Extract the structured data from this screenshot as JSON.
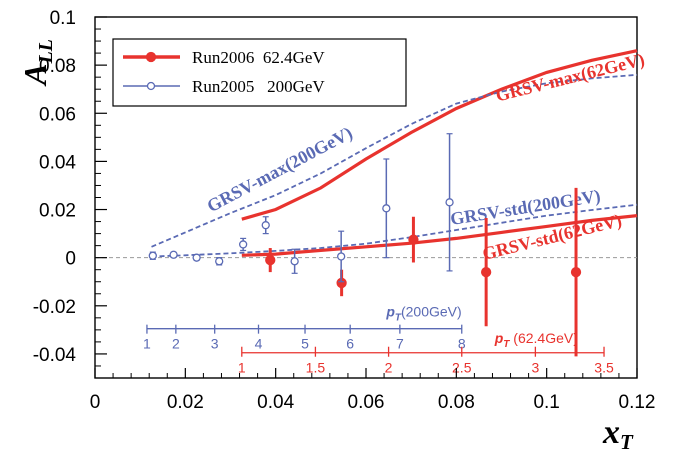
{
  "chart_data": {
    "type": "scatter",
    "xlabel": "x",
    "xlabel_sub": "T",
    "ylabel": "A",
    "ylabel_sub": "LL",
    "xlim": [
      0,
      0.12
    ],
    "ylim": [
      -0.05,
      0.1
    ],
    "x_ticks": [
      "0",
      "0.02",
      "0.04",
      "0.06",
      "0.08",
      "0.1",
      "0.12"
    ],
    "x_tick_values": [
      0,
      0.02,
      0.04,
      0.06,
      0.08,
      0.1,
      0.12
    ],
    "y_ticks": [
      "-0.04",
      "-0.02",
      "0",
      "0.02",
      "0.04",
      "0.06",
      "0.08",
      "0.1"
    ],
    "y_tick_values": [
      -0.04,
      -0.02,
      0,
      0.02,
      0.04,
      0.06,
      0.08,
      0.1
    ],
    "legend_position": "top-left",
    "colors": {
      "red": "#e8332e",
      "blue": "#5a6ab4",
      "zero": "#9a9a9a"
    },
    "series": [
      {
        "name": "Run2006  62.4GeV",
        "marker": "filled-circle",
        "color": "#e8332e",
        "points": [
          {
            "x": 0.0388,
            "y": -0.001,
            "err": 0.005
          },
          {
            "x": 0.0546,
            "y": -0.0105,
            "err": 0.0055
          },
          {
            "x": 0.0705,
            "y": 0.0075,
            "err": 0.0095
          },
          {
            "x": 0.0866,
            "y": -0.006,
            "err": 0.0225
          },
          {
            "x": 0.1065,
            "y": -0.006,
            "err": 0.035
          }
        ]
      },
      {
        "name": "Run2005   200GeV",
        "marker": "open-circle",
        "color": "#5a6ab4",
        "points": [
          {
            "x": 0.0128,
            "y": 0.0008,
            "err": 0.0015
          },
          {
            "x": 0.0174,
            "y": 0.0012,
            "err": 0.001
          },
          {
            "x": 0.0225,
            "y": 0.0,
            "err": 0.001
          },
          {
            "x": 0.0275,
            "y": -0.0015,
            "err": 0.0015
          },
          {
            "x": 0.0328,
            "y": 0.0055,
            "err": 0.0025
          },
          {
            "x": 0.0378,
            "y": 0.0135,
            "err": 0.0035
          },
          {
            "x": 0.0442,
            "y": -0.0015,
            "err": 0.005
          },
          {
            "x": 0.0545,
            "y": 0.0005,
            "err": 0.0105
          },
          {
            "x": 0.0645,
            "y": 0.0205,
            "err": 0.0205
          },
          {
            "x": 0.0785,
            "y": 0.023,
            "err": 0.0285
          }
        ]
      }
    ],
    "curves": [
      {
        "label": "GRSV-max(62GeV)",
        "color": "#e8332e",
        "style": "solid",
        "points": [
          [
            0.0325,
            0.016
          ],
          [
            0.04,
            0.02
          ],
          [
            0.05,
            0.029
          ],
          [
            0.06,
            0.041
          ],
          [
            0.07,
            0.052
          ],
          [
            0.08,
            0.062
          ],
          [
            0.09,
            0.07
          ],
          [
            0.1,
            0.077
          ],
          [
            0.11,
            0.082
          ],
          [
            0.12,
            0.086
          ]
        ]
      },
      {
        "label": "GRSV-std(62GeV)",
        "color": "#e8332e",
        "style": "solid",
        "points": [
          [
            0.0325,
            0.001
          ],
          [
            0.04,
            0.0015
          ],
          [
            0.05,
            0.003
          ],
          [
            0.06,
            0.0045
          ],
          [
            0.07,
            0.006
          ],
          [
            0.08,
            0.008
          ],
          [
            0.09,
            0.0105
          ],
          [
            0.1,
            0.013
          ],
          [
            0.11,
            0.0155
          ],
          [
            0.12,
            0.0175
          ]
        ]
      },
      {
        "label": "GRSV-max(200GeV)",
        "color": "#5a6ab4",
        "style": "dashed",
        "points": [
          [
            0.0125,
            0.0045
          ],
          [
            0.02,
            0.0105
          ],
          [
            0.03,
            0.0185
          ],
          [
            0.04,
            0.026
          ],
          [
            0.05,
            0.035
          ],
          [
            0.06,
            0.0455
          ],
          [
            0.07,
            0.0555
          ],
          [
            0.08,
            0.064
          ],
          [
            0.09,
            0.069
          ],
          [
            0.1,
            0.0725
          ],
          [
            0.11,
            0.0745
          ],
          [
            0.12,
            0.076
          ]
        ]
      },
      {
        "label": "GRSV-std(200GeV)",
        "color": "#5a6ab4",
        "style": "dashed",
        "points": [
          [
            0.0125,
            0.0005
          ],
          [
            0.02,
            0.001
          ],
          [
            0.03,
            0.0018
          ],
          [
            0.04,
            0.0028
          ],
          [
            0.05,
            0.004
          ],
          [
            0.06,
            0.0058
          ],
          [
            0.07,
            0.0085
          ],
          [
            0.08,
            0.0115
          ],
          [
            0.09,
            0.0145
          ],
          [
            0.1,
            0.0175
          ],
          [
            0.11,
            0.0198
          ],
          [
            0.12,
            0.022
          ]
        ]
      }
    ],
    "curve_labels": [
      {
        "text": "GRSV-max(62GeV)",
        "color": "#e8332e",
        "anchor": [
          0.1055,
          0.0725
        ],
        "rotate": -14
      },
      {
        "text": "GRSV-std(62GeV)",
        "color": "#e8332e",
        "anchor": [
          0.1015,
          0.0062
        ],
        "rotate": -14
      },
      {
        "text": "GRSV-max(200GeV)",
        "color": "#5a6ab4",
        "anchor": [
          0.0415,
          0.0345
        ],
        "rotate": -28
      },
      {
        "text": "GRSV-std(200GeV)",
        "color": "#5a6ab4",
        "anchor": [
          0.0955,
          0.0185
        ],
        "rotate": -9
      }
    ],
    "pt_scales": [
      {
        "label_main": "p",
        "label_sub": "T",
        "label_suffix": "(200GeV)",
        "color": "#5a6ab4",
        "y": -0.0295,
        "range": [
          0.0115,
          0.0812
        ],
        "ticks": [
          {
            "label": "1",
            "x": 0.0115
          },
          {
            "label": "2",
            "x": 0.0179
          },
          {
            "label": "3",
            "x": 0.0265
          },
          {
            "label": "4",
            "x": 0.0362
          },
          {
            "label": "5",
            "x": 0.0465
          },
          {
            "label": "6",
            "x": 0.0565
          },
          {
            "label": "7",
            "x": 0.0675
          },
          {
            "label": "8",
            "x": 0.0812
          }
        ],
        "label_anchor": [
          0.0645,
          -0.0245
        ]
      },
      {
        "label_main": "p",
        "label_sub": "T",
        "label_suffix": " (62.4GeV)",
        "color": "#e8332e",
        "y": -0.0395,
        "range": [
          0.0325,
          0.1127
        ],
        "ticks": [
          {
            "label": "1",
            "x": 0.0325
          },
          {
            "label": "1.5",
            "x": 0.0488
          },
          {
            "label": "2",
            "x": 0.065
          },
          {
            "label": "2.5",
            "x": 0.0812
          },
          {
            "label": "3",
            "x": 0.0975
          },
          {
            "label": "3.5",
            "x": 0.1127
          }
        ],
        "label_anchor": [
          0.0885,
          -0.0355
        ]
      }
    ]
  }
}
